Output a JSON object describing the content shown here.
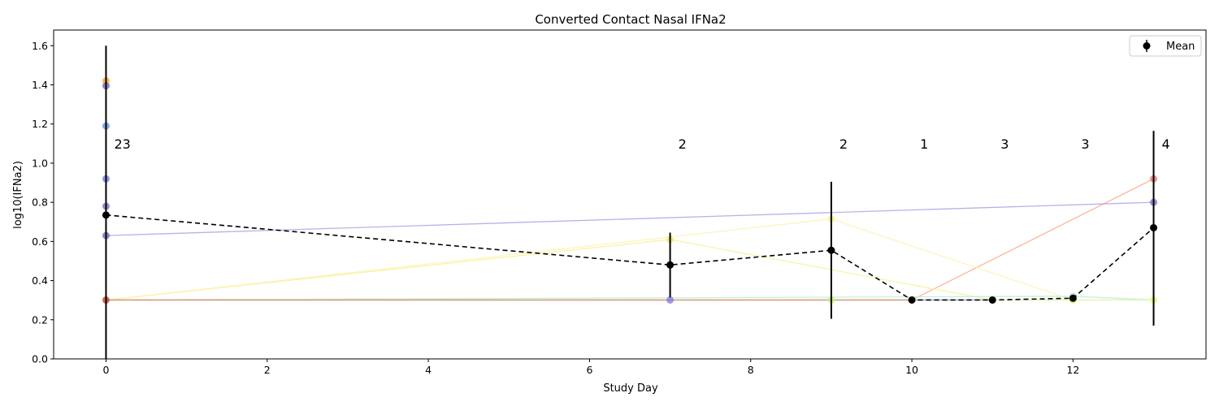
{
  "chart_data": {
    "type": "line",
    "title": "Converted Contact Nasal IFNa2",
    "xlabel": "Study Day",
    "ylabel": "log10(IFNa2)",
    "xlim": [
      -0.65,
      13.65
    ],
    "ylim": [
      0.0,
      1.68
    ],
    "xticks": [
      0,
      2,
      4,
      6,
      8,
      10,
      12
    ],
    "yticks": [
      0.0,
      0.2,
      0.4,
      0.6,
      0.8,
      1.0,
      1.2,
      1.4,
      1.6
    ],
    "grid": false,
    "legend": {
      "placement": "top-right",
      "entries": [
        "Mean"
      ]
    },
    "series": [
      {
        "color": "#f9a88f",
        "x": [
          0,
          10,
          13
        ],
        "y": [
          0.301,
          0.301,
          0.92
        ]
      },
      {
        "color": "#a9a3e6",
        "x": [
          0,
          13
        ],
        "y": [
          0.63,
          0.8
        ]
      },
      {
        "color": "#f6f29a",
        "x": [
          0,
          7,
          11,
          13
        ],
        "y": [
          0.301,
          0.61,
          0.301,
          0.301
        ]
      },
      {
        "color": "#fbf2b4",
        "x": [
          0,
          9,
          12,
          13
        ],
        "y": [
          0.301,
          0.715,
          0.301,
          0.301
        ]
      },
      {
        "color": "#b8ecd8",
        "x": [
          0,
          12,
          13
        ],
        "y": [
          0.301,
          0.32,
          0.301
        ]
      },
      {
        "color": "#e2f8b0",
        "x": [
          0,
          9,
          12,
          13
        ],
        "y": [
          0.301,
          0.301,
          0.301,
          0.301
        ]
      },
      {
        "color": "#f0c77a",
        "x": [
          0,
          7
        ],
        "y": [
          0.301,
          0.301
        ]
      },
      {
        "color": "#9e8fd8",
        "x": [
          0,
          7,
          11
        ],
        "y": [
          0.301,
          0.301,
          0.301
        ]
      },
      {
        "color": "#e8a070",
        "x": [
          0,
          10
        ],
        "y": [
          0.301,
          0.301
        ]
      }
    ],
    "points": [
      {
        "x": 0,
        "y": 1.42,
        "color": "#f5a623"
      },
      {
        "x": 0,
        "y": 1.395,
        "color": "#6a5fb8"
      },
      {
        "x": 0,
        "y": 1.19,
        "color": "#5b8fe0"
      },
      {
        "x": 0,
        "y": 0.92,
        "color": "#6f77d6"
      },
      {
        "x": 0,
        "y": 0.78,
        "color": "#7766c8"
      },
      {
        "x": 0,
        "y": 0.63,
        "color": "#6860b6"
      },
      {
        "x": 0,
        "y": 0.301,
        "color": "#c0392b"
      },
      {
        "x": 7,
        "y": 0.61,
        "color": "#f0ea6a"
      },
      {
        "x": 7,
        "y": 0.301,
        "color": "#7f74e0"
      },
      {
        "x": 9,
        "y": 0.715,
        "color": "#f3f08e"
      },
      {
        "x": 9,
        "y": 0.301,
        "color": "#c8f07a"
      },
      {
        "x": 12,
        "y": 0.32,
        "color": "#9fe3c8"
      },
      {
        "x": 12,
        "y": 0.301,
        "color": "#d8f56e"
      },
      {
        "x": 13,
        "y": 0.92,
        "color": "#e07464"
      },
      {
        "x": 13,
        "y": 0.8,
        "color": "#7268c6"
      },
      {
        "x": 13,
        "y": 0.301,
        "color": "#e8f57a"
      }
    ],
    "mean": {
      "name": "Mean",
      "color": "#000000",
      "x": [
        0,
        7,
        9,
        10,
        11,
        12,
        13
      ],
      "y": [
        0.735,
        0.48,
        0.555,
        0.301,
        0.301,
        0.31,
        0.67
      ],
      "err_low": [
        0.0,
        0.315,
        0.205,
        0.301,
        0.301,
        0.31,
        0.17
      ],
      "err_high": [
        1.6,
        0.645,
        0.905,
        0.301,
        0.301,
        0.31,
        1.165
      ]
    },
    "count_labels": [
      {
        "x": 0,
        "text": "23"
      },
      {
        "x": 7,
        "text": "2"
      },
      {
        "x": 9,
        "text": "2"
      },
      {
        "x": 10,
        "text": "1"
      },
      {
        "x": 11,
        "text": "3"
      },
      {
        "x": 12,
        "text": "3"
      },
      {
        "x": 13,
        "text": "4"
      }
    ],
    "count_label_y": 1.1
  }
}
